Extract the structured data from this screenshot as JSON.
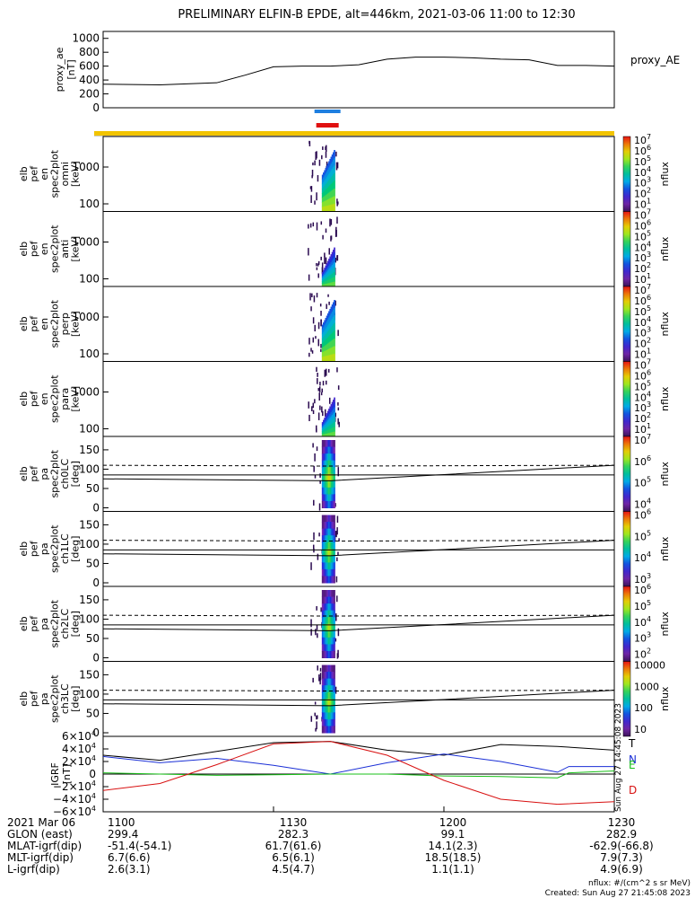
{
  "title": "PRELIMINARY ELFIN-B EPDE, alt=446km, 2021-03-06 11:00 to 12:30",
  "x_ticks": [
    "1100",
    "1130",
    "1200",
    "1230"
  ],
  "colors": {
    "blue_bar": "#1e7fe0",
    "red_bar": "#e01010",
    "yellow_bar": "#f2c400",
    "gray_bar": "#c8c8c8"
  },
  "panels": {
    "ae": {
      "ylabel": [
        "proxy_ae",
        "[nT]"
      ],
      "legend": "proxy_AE",
      "yticks": [
        "1000",
        "800",
        "600",
        "400",
        "200",
        "0"
      ]
    },
    "spec": [
      {
        "ylabel": [
          "elb",
          "pef",
          "en",
          "spec2plot",
          "omni",
          "[keV]"
        ],
        "yticks": [
          "1000",
          "100"
        ],
        "cb_ticks": [
          "10",
          "10",
          "10",
          "10",
          "10",
          "10",
          "10"
        ],
        "cb_exp": [
          "7",
          "6",
          "5",
          "4",
          "3",
          "2",
          "1"
        ],
        "cb_label": "nflux"
      },
      {
        "ylabel": [
          "elb",
          "pef",
          "en",
          "spec2plot",
          "anti",
          "[keV]"
        ],
        "yticks": [
          "1000",
          "100"
        ],
        "cb_ticks": [
          "10",
          "10",
          "10",
          "10",
          "10",
          "10",
          "10"
        ],
        "cb_exp": [
          "7",
          "6",
          "5",
          "4",
          "3",
          "2",
          "1"
        ],
        "cb_label": "nflux"
      },
      {
        "ylabel": [
          "elb",
          "pef",
          "en",
          "spec2plot",
          "perp",
          "[keV]"
        ],
        "yticks": [
          "1000",
          "100"
        ],
        "cb_ticks": [
          "10",
          "10",
          "10",
          "10",
          "10",
          "10",
          "10"
        ],
        "cb_exp": [
          "7",
          "6",
          "5",
          "4",
          "3",
          "2",
          "1"
        ],
        "cb_label": "nflux"
      },
      {
        "ylabel": [
          "elb",
          "pef",
          "en",
          "spec2plot",
          "para",
          "[keV]"
        ],
        "yticks": [
          "1000",
          "100"
        ],
        "cb_ticks": [
          "10",
          "10",
          "10",
          "10",
          "10",
          "10",
          "10"
        ],
        "cb_exp": [
          "7",
          "6",
          "5",
          "4",
          "3",
          "2",
          "1"
        ],
        "cb_label": "nflux"
      }
    ],
    "pa": [
      {
        "ylabel": [
          "elb",
          "pef",
          "pa",
          "spec2plot",
          "ch0LC",
          "[deg]"
        ],
        "yticks": [
          "150",
          "100",
          "50",
          "0"
        ],
        "cb_ticks": [
          "10",
          "10",
          "10",
          "10"
        ],
        "cb_exp": [
          "7",
          "6",
          "5",
          "4"
        ],
        "cb_label": "nflux"
      },
      {
        "ylabel": [
          "elb",
          "pef",
          "pa",
          "spec2plot",
          "ch1LC",
          "[deg]"
        ],
        "yticks": [
          "150",
          "100",
          "50",
          "0"
        ],
        "cb_ticks": [
          "10",
          "10",
          "10",
          "10"
        ],
        "cb_exp": [
          "6",
          "5",
          "4",
          "3"
        ],
        "cb_label": "nflux"
      },
      {
        "ylabel": [
          "elb",
          "pef",
          "pa",
          "spec2plot",
          "ch2LC",
          "[deg]"
        ],
        "yticks": [
          "150",
          "100",
          "50",
          "0"
        ],
        "cb_ticks": [
          "10",
          "10",
          "10",
          "10",
          "10"
        ],
        "cb_exp": [
          "6",
          "5",
          "4",
          "3",
          "2"
        ],
        "cb_label": "nflux"
      },
      {
        "ylabel": [
          "elb",
          "pef",
          "pa",
          "spec2plot",
          "ch3LC",
          "[deg]"
        ],
        "yticks": [
          "150",
          "100",
          "50",
          "0"
        ],
        "cb_ticks": [
          "10000",
          "1000",
          "100",
          "10"
        ],
        "cb_exp": [
          "",
          "",
          "",
          ""
        ],
        "cb_label": "nflux"
      }
    ],
    "igrf": {
      "ylabel": [
        "IGRF",
        "[nT]"
      ],
      "yticks": [
        "6×10",
        "4×10",
        "2×10",
        "0",
        "−2×10",
        "−4×10",
        "−6×10"
      ],
      "yticks_exp": [
        "4",
        "4",
        "4",
        "",
        "4",
        "4",
        "4"
      ],
      "legend": [
        {
          "name": "T",
          "color": "#000000"
        },
        {
          "name": "N",
          "color": "#1a2fd6"
        },
        {
          "name": "E",
          "color": "#18c018"
        },
        {
          "name": "D",
          "color": "#d81010"
        }
      ]
    }
  },
  "side_stamp": "Sun Aug 27 14:45:08 2023",
  "footer": {
    "rows": [
      {
        "label": "2021 Mar 06",
        "values": [
          "1100",
          "1130",
          "1200",
          "1230"
        ]
      },
      {
        "label": "GLON (east)",
        "values": [
          "299.4",
          "282.3",
          "99.1",
          "282.9"
        ]
      },
      {
        "label": "MLAT-igrf(dip)",
        "values": [
          "-51.4(-54.1)",
          "61.7(61.6)",
          "14.1(2.3)",
          "-62.9(-66.8)"
        ]
      },
      {
        "label": "MLT-igrf(dip)",
        "values": [
          "6.7(6.6)",
          "6.5(6.1)",
          "18.5(18.5)",
          "7.9(7.3)"
        ]
      },
      {
        "label": "L-igrf(dip)",
        "values": [
          "2.6(3.1)",
          "4.5(4.7)",
          "1.1(1.1)",
          "4.9(6.9)"
        ]
      }
    ],
    "note1": "nflux: #/(cm^2 s sr MeV)",
    "note2": "Created: Sun Aug 27 21:45:08 2023"
  },
  "chart_data": [
    {
      "type": "line",
      "panel": "proxy_ae",
      "x_unit": "UT (minutes after 11:00)",
      "xlim": [
        0,
        90
      ],
      "ylim": [
        0,
        1100
      ],
      "ylabel": "proxy_ae [nT]",
      "series": [
        {
          "name": "proxy_AE",
          "x": [
            0,
            10,
            20,
            25,
            30,
            35,
            40,
            45,
            50,
            55,
            60,
            65,
            70,
            75,
            80,
            85,
            90
          ],
          "y": [
            340,
            330,
            360,
            470,
            590,
            600,
            600,
            620,
            700,
            730,
            730,
            720,
            700,
            690,
            610,
            610,
            600
          ]
        }
      ]
    },
    {
      "type": "heatmap",
      "panel": "en spectrograms",
      "x_unit": "UT (minutes after 11:00)",
      "xlim": [
        0,
        90
      ],
      "y_log": true,
      "y_tick_values": [
        1000,
        100
      ],
      "colorbar": {
        "scale": "log",
        "range": [
          10,
          10000000
        ]
      },
      "active_interval": [
        38,
        41
      ]
    },
    {
      "type": "heatmap",
      "panel": "pa spectrograms",
      "x_unit": "UT (minutes after 11:00)",
      "xlim": [
        0,
        90
      ],
      "ylim": [
        0,
        180
      ],
      "active_interval": [
        38,
        41
      ]
    },
    {
      "type": "line",
      "panel": "IGRF",
      "x_unit": "UT (minutes after 11:00)",
      "xlim": [
        0,
        90
      ],
      "ylim": [
        -60000,
        60000
      ],
      "series": [
        {
          "name": "T",
          "x": [
            0,
            10,
            20,
            30,
            40,
            50,
            60,
            70,
            80,
            90
          ],
          "y": [
            30000,
            22000,
            36000,
            50000,
            52000,
            38000,
            30000,
            47000,
            44000,
            38000
          ]
        },
        {
          "name": "N",
          "x": [
            0,
            10,
            20,
            30,
            40,
            50,
            60,
            70,
            80,
            82,
            90
          ],
          "y": [
            28000,
            18000,
            25000,
            14000,
            0,
            18000,
            32000,
            20000,
            3000,
            12000,
            12000
          ]
        },
        {
          "name": "E",
          "x": [
            0,
            10,
            20,
            30,
            40,
            50,
            60,
            70,
            80,
            82,
            90
          ],
          "y": [
            2000,
            0,
            -2000,
            -1000,
            0,
            0,
            -3000,
            -4000,
            -6000,
            2000,
            5000
          ]
        },
        {
          "name": "D",
          "x": [
            0,
            10,
            20,
            30,
            40,
            50,
            60,
            70,
            80,
            90
          ],
          "y": [
            -26000,
            -15000,
            15000,
            48000,
            52000,
            30000,
            -10000,
            -40000,
            -48000,
            -44000
          ]
        }
      ]
    }
  ]
}
